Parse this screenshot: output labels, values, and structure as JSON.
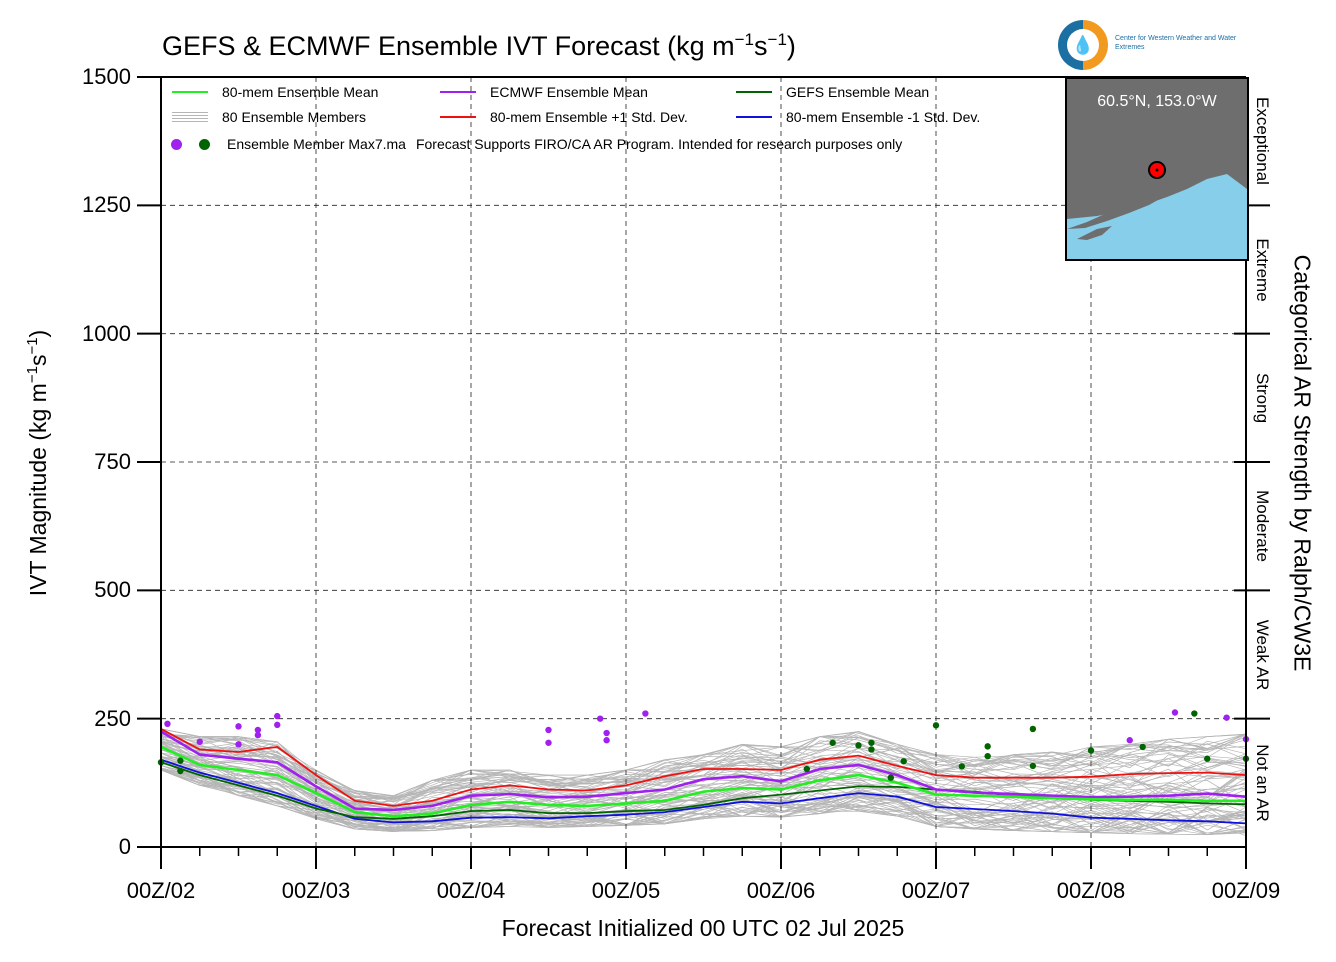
{
  "title": {
    "main": "GEFS & ECMWF Ensemble IVT Forecast (kg m",
    "exp1": "−1",
    "mid": "s",
    "exp2": "−1",
    "end": ")"
  },
  "y_axis_label": {
    "main": "IVT Magnitude (kg m",
    "exp1": "−1",
    "mid": "s",
    "exp2": "−1",
    "end": ")"
  },
  "x_axis_label": "Forecast Initialized 00 UTC 02 Jul 2025",
  "right_axis_label": "Categorical AR Strength by Ralph/CW3E",
  "categories_right": [
    "Not an AR",
    "Weak AR",
    "Moderate",
    "Strong",
    "Extreme",
    "Exceptional"
  ],
  "logo": {
    "icon_name": "water-drop-logo-icon",
    "text": "Center for Western Weather and Water Extremes"
  },
  "inset": {
    "location_label": "60.5°N, 153.0°W",
    "land_color": "#6e6e6e",
    "ocean_color": "#87ceeb",
    "marker_color": "#ff0000"
  },
  "legend": {
    "mean80": "80-mem Ensemble Mean",
    "ecmwf": "ECMWF Ensemble Mean",
    "gefs": "GEFS Ensemble Mean",
    "members": "80 Ensemble Members",
    "plus1": "80-mem Ensemble +1 Std. Dev.",
    "minus1": "80-mem Ensemble -1 Std. Dev.",
    "max7": "Ensemble Member Max7.ma",
    "note": "Forecast Supports FIRO/CA AR Program. Intended for research purposes only"
  },
  "colors": {
    "mean80": "#22ee22",
    "ecmwf": "#a020f0",
    "gefs": "#006400",
    "plus1": "#ee1111",
    "minus1": "#1010dd",
    "members": "#b5b5b5"
  },
  "chart_data": {
    "type": "line",
    "title": "GEFS & ECMWF Ensemble IVT Forecast (kg m−1s−1)",
    "xlabel": "Forecast Initialized 00 UTC 02 Jul 2025",
    "ylabel": "IVT Magnitude (kg m−1s−1)",
    "x_unit": "forecast hour",
    "xlim": [
      0,
      168
    ],
    "ylim": [
      0,
      1500
    ],
    "yticks": [
      0,
      250,
      500,
      750,
      1000,
      1250,
      1500
    ],
    "xtick_labels": [
      "00Z/02",
      "00Z/03",
      "00Z/04",
      "00Z/05",
      "00Z/06",
      "00Z/07",
      "00Z/08",
      "00Z/09"
    ],
    "grid": true,
    "category_thresholds": [
      0,
      250,
      500,
      750,
      1000,
      1250,
      1500
    ],
    "x": [
      0,
      6,
      12,
      18,
      24,
      30,
      36,
      42,
      48,
      54,
      60,
      66,
      72,
      78,
      84,
      90,
      96,
      102,
      108,
      114,
      120,
      126,
      132,
      138,
      144,
      150,
      156,
      162,
      168
    ],
    "series": [
      {
        "name": "80-mem Ensemble Mean",
        "values": [
          195,
          160,
          150,
          140,
          105,
          68,
          60,
          65,
          82,
          88,
          82,
          80,
          85,
          90,
          108,
          115,
          112,
          130,
          140,
          125,
          102,
          100,
          98,
          95,
          93,
          92,
          92,
          90,
          90
        ]
      },
      {
        "name": "ECMWF Ensemble Mean",
        "values": [
          225,
          180,
          172,
          165,
          118,
          75,
          72,
          80,
          100,
          103,
          97,
          98,
          105,
          112,
          132,
          138,
          128,
          152,
          160,
          140,
          112,
          106,
          103,
          100,
          97,
          98,
          100,
          104,
          98
        ]
      },
      {
        "name": "GEFS Ensemble Mean",
        "values": [
          165,
          140,
          120,
          100,
          75,
          58,
          55,
          60,
          70,
          72,
          66,
          66,
          70,
          72,
          82,
          95,
          102,
          110,
          118,
          117,
          112,
          108,
          100,
          96,
          92,
          90,
          88,
          85,
          83
        ]
      },
      {
        "name": "80-mem Ensemble +1 Std. Dev.",
        "values": [
          230,
          190,
          185,
          195,
          140,
          90,
          80,
          90,
          112,
          120,
          112,
          110,
          120,
          138,
          152,
          152,
          150,
          170,
          178,
          158,
          140,
          135,
          135,
          135,
          137,
          142,
          144,
          145,
          140
        ]
      },
      {
        "name": "80-mem Ensemble -1 Std. Dev.",
        "values": [
          170,
          145,
          125,
          105,
          80,
          55,
          48,
          50,
          57,
          58,
          56,
          60,
          63,
          68,
          78,
          88,
          85,
          95,
          105,
          98,
          78,
          74,
          70,
          65,
          57,
          55,
          52,
          50,
          46
        ]
      }
    ],
    "member_envelope": {
      "low": [
        150,
        120,
        100,
        80,
        55,
        35,
        30,
        32,
        38,
        40,
        38,
        40,
        42,
        45,
        55,
        60,
        58,
        65,
        70,
        60,
        40,
        35,
        32,
        30,
        28,
        26,
        25,
        24,
        22
      ],
      "high": [
        230,
        215,
        215,
        205,
        150,
        110,
        100,
        130,
        150,
        150,
        140,
        140,
        150,
        170,
        180,
        200,
        195,
        215,
        225,
        200,
        180,
        175,
        180,
        185,
        195,
        200,
        210,
        215,
        220
      ]
    },
    "max7_points_ecmwf": [
      [
        1,
        240
      ],
      [
        6,
        205
      ],
      [
        12,
        235
      ],
      [
        12,
        200
      ],
      [
        15,
        228
      ],
      [
        15,
        218
      ],
      [
        18,
        238
      ],
      [
        18,
        255
      ],
      [
        60,
        228
      ],
      [
        60,
        203
      ],
      [
        68,
        250
      ],
      [
        69,
        222
      ],
      [
        69,
        208
      ],
      [
        75,
        260
      ],
      [
        150,
        208
      ],
      [
        157,
        262
      ],
      [
        165,
        252
      ],
      [
        168,
        210
      ]
    ],
    "max7_points_gefs": [
      [
        0,
        165
      ],
      [
        3,
        148
      ],
      [
        3,
        168
      ],
      [
        100,
        152
      ],
      [
        104,
        203
      ],
      [
        108,
        198
      ],
      [
        110,
        190
      ],
      [
        110,
        203
      ],
      [
        115,
        167
      ],
      [
        120,
        237
      ],
      [
        113,
        135
      ],
      [
        124,
        157
      ],
      [
        128,
        177
      ],
      [
        128,
        196
      ],
      [
        135,
        158
      ],
      [
        135,
        230
      ],
      [
        144,
        188
      ],
      [
        152,
        195
      ],
      [
        160,
        260
      ],
      [
        162,
        172
      ],
      [
        168,
        172
      ]
    ]
  }
}
